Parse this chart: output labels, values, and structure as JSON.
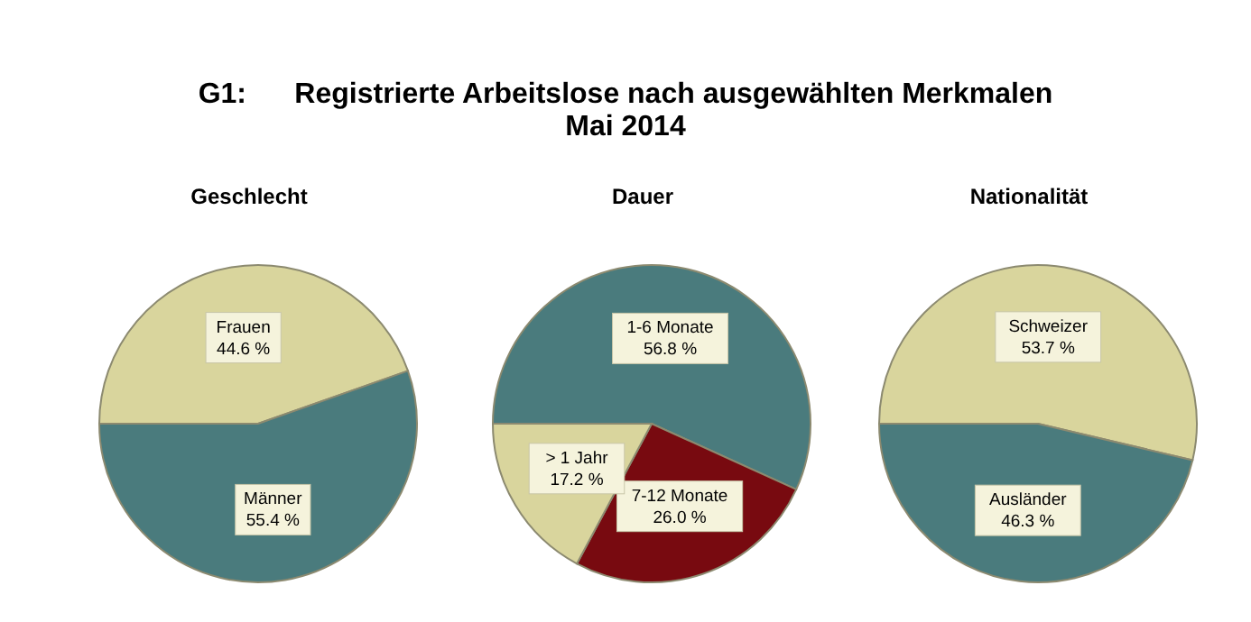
{
  "chart_data": [
    {
      "type": "other",
      "title": "G1:      Registrierte Arbeitslose nach ausgewählten Merkmalen",
      "subtitle": "Mai 2014"
    },
    {
      "type": "pie",
      "title": "Geschlecht",
      "categories": [
        "Frauen",
        "Männer"
      ],
      "values": [
        44.6,
        55.4
      ],
      "colors": [
        "#d9d59d",
        "#4a7b7d"
      ],
      "value_labels": [
        "44.6 %",
        "55.4 %"
      ]
    },
    {
      "type": "pie",
      "title": "Dauer",
      "categories": [
        "1-6 Monate",
        "7-12 Monate",
        "> 1 Jahr"
      ],
      "values": [
        56.8,
        26.0,
        17.2
      ],
      "colors": [
        "#4a7b7d",
        "#780a10",
        "#d9d59d"
      ],
      "value_labels": [
        "56.8 %",
        "26.0 %",
        "17.2 %"
      ]
    },
    {
      "type": "pie",
      "title": "Nationalität",
      "categories": [
        "Schweizer",
        "Ausländer"
      ],
      "values": [
        53.7,
        46.3
      ],
      "colors": [
        "#d9d59d",
        "#4a7b7d"
      ],
      "value_labels": [
        "53.7 %",
        "46.3 %"
      ]
    }
  ]
}
